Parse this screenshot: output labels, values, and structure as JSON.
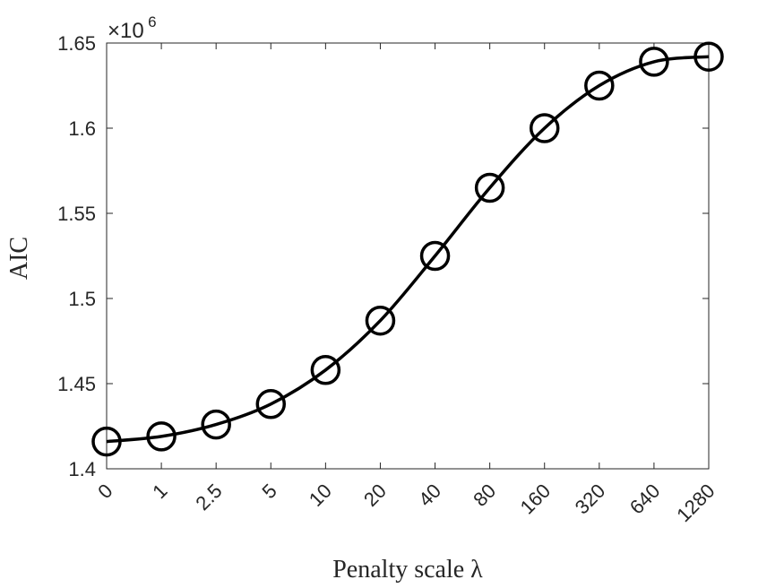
{
  "chart_data": {
    "type": "line",
    "xlabel": "Penalty scale λ",
    "ylabel": "AIC",
    "y_multiplier": "×10^6",
    "y_multiplier_base": "×10",
    "y_multiplier_exp": "6",
    "categories": [
      "0",
      "1",
      "2.5",
      "5",
      "10",
      "20",
      "40",
      "80",
      "160",
      "320",
      "640",
      "1280"
    ],
    "values": [
      1.416,
      1.419,
      1.426,
      1.438,
      1.458,
      1.487,
      1.525,
      1.565,
      1.6,
      1.625,
      1.639,
      1.642
    ],
    "ylim": [
      1.4,
      1.65
    ],
    "yticks": [
      1.4,
      1.45,
      1.5,
      1.55,
      1.6,
      1.65
    ],
    "ytick_labels": [
      "1.4",
      "1.45",
      "1.5",
      "1.55",
      "1.6",
      "1.65"
    ],
    "marker": "open-circle",
    "line_color": "#000000",
    "grid": false,
    "legend": "none"
  }
}
